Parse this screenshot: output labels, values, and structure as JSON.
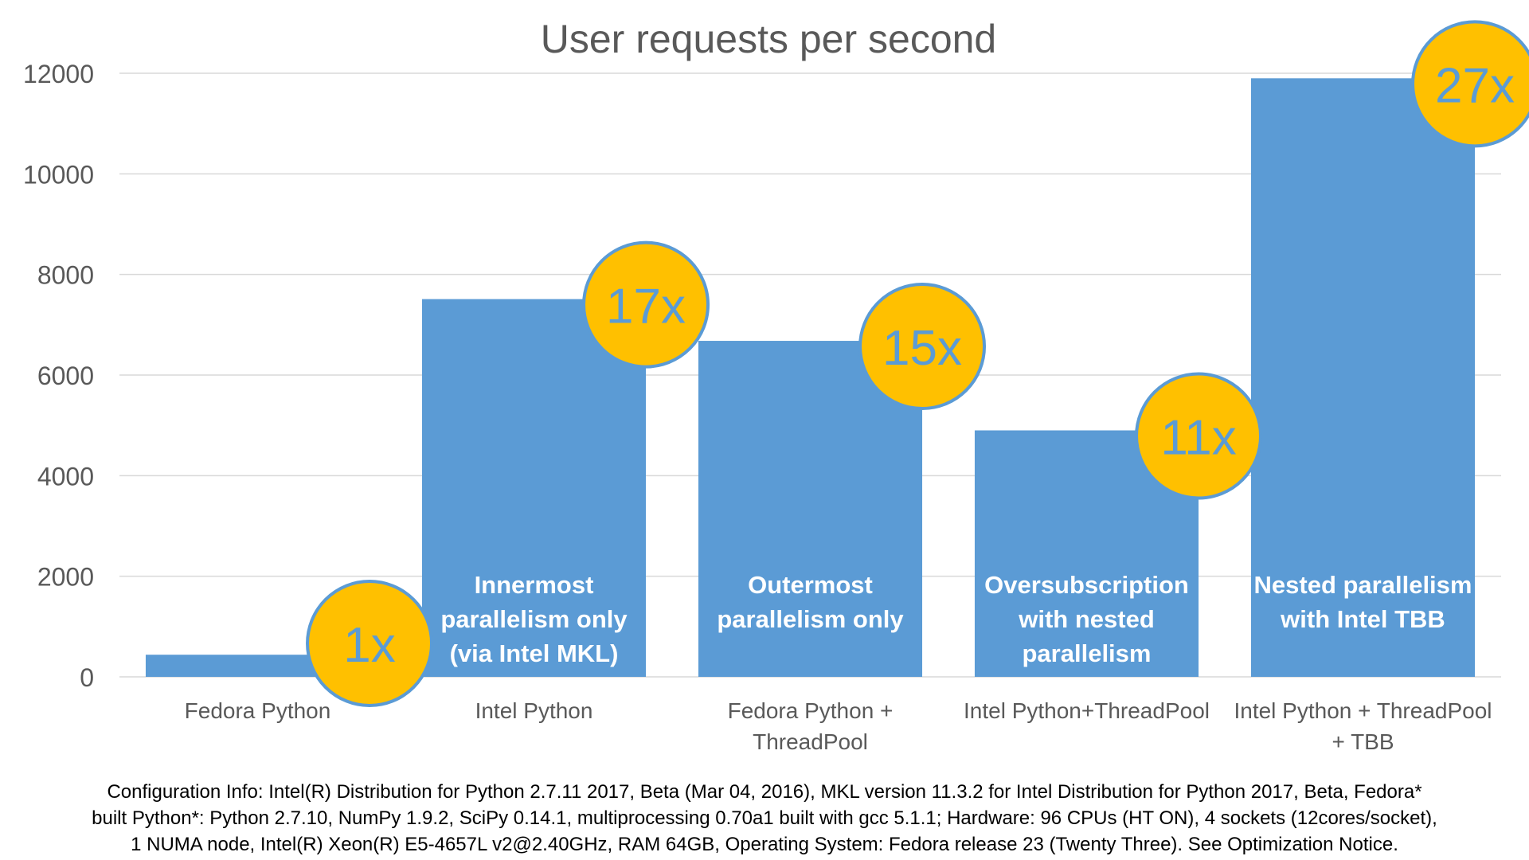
{
  "chart_data": {
    "type": "bar",
    "title": "User requests per second",
    "xlabel": "",
    "ylabel": "",
    "ylim": [
      0,
      12000
    ],
    "yticks": [
      0,
      2000,
      4000,
      6000,
      8000,
      10000,
      12000
    ],
    "grid": true,
    "categories": [
      [
        "Fedora Python"
      ],
      [
        "Intel Python"
      ],
      [
        "Fedora Python +",
        "ThreadPool"
      ],
      [
        "Intel Python+ThreadPool"
      ],
      [
        "Intel Python + ThreadPool",
        "+ TBB"
      ]
    ],
    "values": [
      440,
      7510,
      6680,
      4900,
      11900
    ],
    "bar_labels": [
      [],
      [
        "Innermost",
        "parallelism only",
        "(via Intel MKL)"
      ],
      [
        "Outermost",
        "parallelism only"
      ],
      [
        "Oversubscription",
        "with nested",
        "parallelism"
      ],
      [
        "Nested parallelism",
        "with Intel TBB"
      ]
    ],
    "speedups": [
      "1x",
      "17x",
      "15x",
      "11x",
      "27x"
    ],
    "colors": {
      "bar": "#5B9BD5",
      "badge_fill": "#FFC000",
      "badge_stroke": "#5B9BD5",
      "badge_text": "#5B9BD5",
      "grid": "#D9D9D9",
      "axis_text": "#595959"
    }
  },
  "footnote": [
    "Configuration Info: Intel(R) Distribution for Python 2.7.11 2017, Beta (Mar 04, 2016), MKL version 11.3.2 for Intel Distribution for Python 2017, Beta, Fedora*",
    "built Python*: Python 2.7.10, NumPy 1.9.2, SciPy 0.14.1, multiprocessing 0.70a1 built with gcc 5.1.1; Hardware: 96 CPUs (HT ON), 4 sockets (12cores/socket),",
    "1 NUMA node, Intel(R) Xeon(R) E5-4657L v2@2.40GHz, RAM 64GB, Operating System: Fedora release 23 (Twenty Three). See Optimization Notice."
  ]
}
